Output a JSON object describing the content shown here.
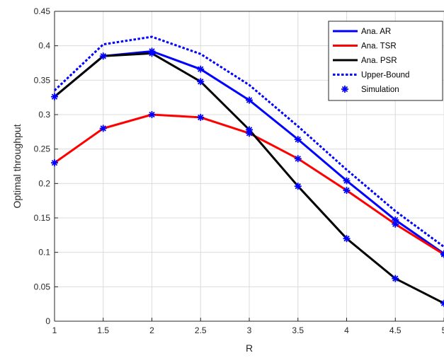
{
  "chart_data": {
    "type": "line",
    "title": "",
    "xlabel": "R",
    "ylabel": "Optimal throughput",
    "xlim": [
      1,
      5
    ],
    "ylim": [
      0,
      0.45
    ],
    "x_ticks": [
      "1",
      "1.5",
      "2",
      "2.5",
      "3",
      "3.5",
      "4",
      "4.5",
      "5"
    ],
    "y_ticks": [
      "0",
      "0.05",
      "0.1",
      "0.15",
      "0.2",
      "0.25",
      "0.3",
      "0.35",
      "0.4",
      "0.45"
    ],
    "grid": true,
    "legend_position": "top-right",
    "x": [
      1,
      1.5,
      2,
      2.5,
      3,
      3.5,
      4,
      4.5,
      5
    ],
    "series": [
      {
        "name": "Ana. AR",
        "color": "#0000ff",
        "style": "solid",
        "values": [
          0.326,
          0.385,
          0.392,
          0.366,
          0.321,
          0.264,
          0.204,
          0.147,
          0.098
        ]
      },
      {
        "name": "Ana. TSR",
        "color": "#ff0000",
        "style": "solid",
        "values": [
          0.23,
          0.28,
          0.3,
          0.296,
          0.273,
          0.236,
          0.19,
          0.141,
          0.097
        ]
      },
      {
        "name": "Ana. PSR",
        "color": "#000000",
        "style": "solid",
        "values": [
          0.326,
          0.385,
          0.389,
          0.348,
          0.278,
          0.196,
          0.12,
          0.062,
          0.026
        ]
      },
      {
        "name": "Upper-Bound",
        "color": "#0000ff",
        "style": "dotted",
        "values": [
          0.335,
          0.402,
          0.413,
          0.388,
          0.343,
          0.283,
          0.22,
          0.16,
          0.108
        ]
      }
    ],
    "simulation": {
      "name": "Simulation",
      "color": "#0000ff",
      "marker": "asterisk",
      "points": [
        {
          "x": 1,
          "y": 0.326
        },
        {
          "x": 1.5,
          "y": 0.385
        },
        {
          "x": 2,
          "y": 0.392
        },
        {
          "x": 2.5,
          "y": 0.366
        },
        {
          "x": 3,
          "y": 0.321
        },
        {
          "x": 3.5,
          "y": 0.264
        },
        {
          "x": 4,
          "y": 0.204
        },
        {
          "x": 4.5,
          "y": 0.147
        },
        {
          "x": 5,
          "y": 0.098
        },
        {
          "x": 1,
          "y": 0.23
        },
        {
          "x": 1.5,
          "y": 0.28
        },
        {
          "x": 2,
          "y": 0.3
        },
        {
          "x": 2.5,
          "y": 0.296
        },
        {
          "x": 3,
          "y": 0.273
        },
        {
          "x": 3.5,
          "y": 0.236
        },
        {
          "x": 4,
          "y": 0.19
        },
        {
          "x": 4.5,
          "y": 0.141
        },
        {
          "x": 5,
          "y": 0.097
        },
        {
          "x": 2,
          "y": 0.389
        },
        {
          "x": 2.5,
          "y": 0.348
        },
        {
          "x": 3,
          "y": 0.278
        },
        {
          "x": 3.5,
          "y": 0.196
        },
        {
          "x": 4,
          "y": 0.12
        },
        {
          "x": 4.5,
          "y": 0.062
        },
        {
          "x": 5,
          "y": 0.026
        }
      ]
    }
  }
}
